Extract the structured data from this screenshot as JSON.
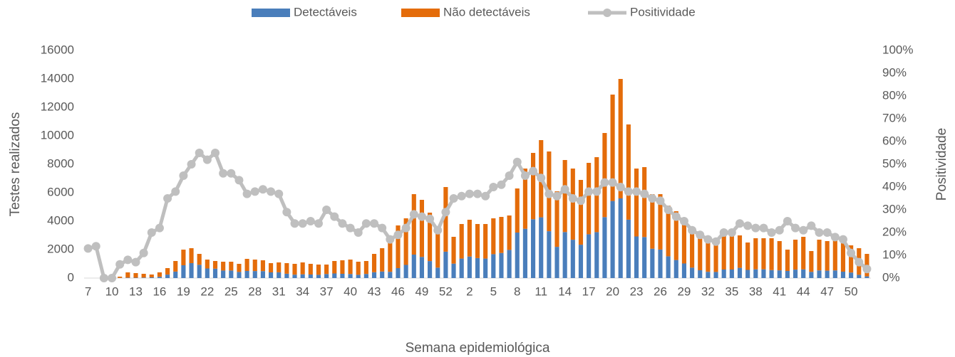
{
  "chart_data": {
    "type": "bar",
    "stacked": true,
    "x_label": "Semana epidemiológica",
    "y_label": "Testes realizados",
    "y2_label": "Positividade",
    "categories": [
      7,
      null,
      null,
      10,
      null,
      null,
      13,
      null,
      null,
      16,
      null,
      null,
      19,
      null,
      null,
      22,
      null,
      null,
      25,
      null,
      null,
      28,
      null,
      null,
      31,
      null,
      null,
      34,
      null,
      null,
      37,
      null,
      null,
      40,
      null,
      null,
      43,
      null,
      null,
      46,
      null,
      null,
      49,
      null,
      null,
      52,
      null,
      null,
      2,
      null,
      null,
      5,
      null,
      null,
      8,
      null,
      null,
      11,
      null,
      null,
      14,
      null,
      null,
      17,
      null,
      null,
      20,
      null,
      null,
      23,
      null,
      null,
      26,
      null,
      null,
      29,
      null,
      null,
      32,
      null,
      null,
      35,
      null,
      null,
      38,
      null,
      null,
      41,
      null,
      null,
      44,
      null,
      null,
      47,
      null,
      null,
      50,
      null,
      null
    ],
    "series": [
      {
        "name": "Detectáveis",
        "color": "#4a7ebb",
        "values": [
          0,
          0,
          0,
          0,
          10,
          30,
          25,
          35,
          50,
          90,
          245,
          455,
          900,
          1050,
          935,
          675,
          660,
          530,
          530,
          430,
          500,
          495,
          490,
          400,
          405,
          305,
          240,
          265,
          250,
          230,
          285,
          325,
          300,
          285,
          230,
          290,
          410,
          460,
          440,
          700,
          925,
          1650,
          1485,
          1195,
          735,
          1855,
          1015,
          1370,
          1515,
          1405,
          1370,
          1680,
          1765,
          1980,
          3200,
          3465,
          4135,
          4270,
          3295,
          2195,
          3235,
          2695,
          2345,
          3080,
          3230,
          4285,
          5420,
          5600,
          4105,
          2925,
          2885,
          2065,
          2005,
          1530,
          1270,
          1025,
          735,
          550,
          440,
          430,
          600,
          600,
          720,
          575,
          615,
          615,
          560,
          545,
          500,
          595,
          610,
          435,
          540,
          520,
          540,
          450,
          390,
          230,
          120
        ]
      },
      {
        "name": "Não detectáveis",
        "color": "#e46c0a",
        "values": [
          0,
          0,
          0,
          50,
          90,
          370,
          325,
          265,
          200,
          310,
          455,
          745,
          1100,
          1050,
          765,
          625,
          540,
          620,
          620,
          570,
          850,
          805,
          760,
          650,
          695,
          745,
          760,
          835,
          750,
          720,
          665,
          875,
          950,
          1015,
          920,
          910,
          1290,
          1640,
          2160,
          3000,
          3275,
          4250,
          4015,
          3405,
          2765,
          4545,
          1885,
          2430,
          2585,
          2395,
          2430,
          2520,
          2535,
          2420,
          3100,
          4235,
          4665,
          5430,
          5605,
          3905,
          5065,
          5005,
          4555,
          5020,
          5270,
          5915,
          7480,
          8400,
          6695,
          4775,
          4915,
          3835,
          3895,
          3570,
          3430,
          3075,
          2765,
          2350,
          2160,
          2270,
          2400,
          2400,
          2280,
          1925,
          2185,
          2185,
          2240,
          2055,
          1500,
          2105,
          2290,
          1465,
          2160,
          2080,
          2160,
          2050,
          1910,
          1870,
          1580
        ]
      },
      {
        "name": "Positividade",
        "color": "#bfbfbf",
        "type": "line",
        "axis": "y2",
        "values": [
          13,
          14,
          0,
          0,
          6,
          8,
          7,
          11,
          20,
          22,
          35,
          38,
          45,
          50,
          55,
          52,
          55,
          46,
          46,
          43,
          37,
          38,
          39,
          38,
          37,
          29,
          24,
          24,
          25,
          24,
          30,
          27,
          24,
          22,
          20,
          24,
          24,
          22,
          17,
          19,
          22,
          28,
          27,
          26,
          21,
          29,
          35,
          36,
          37,
          37,
          36,
          40,
          41,
          45,
          51,
          45,
          47,
          44,
          37,
          36,
          39,
          35,
          34,
          38,
          38,
          42,
          42,
          40,
          38,
          38,
          37,
          35,
          34,
          30,
          27,
          25,
          21,
          19,
          17,
          16,
          20,
          20,
          24,
          23,
          22,
          22,
          20,
          21,
          25,
          22,
          21,
          23,
          20,
          20,
          18,
          17,
          11,
          7,
          4
        ]
      }
    ],
    "ylim": [
      0,
      16000
    ],
    "yticks": [
      0,
      2000,
      4000,
      6000,
      8000,
      10000,
      12000,
      14000,
      16000
    ],
    "y2lim": [
      0,
      100
    ],
    "y2ticks": [
      {
        "value": 0,
        "label": "0%"
      },
      {
        "value": 10,
        "label": "10%"
      },
      {
        "value": 20,
        "label": "20%"
      },
      {
        "value": 30,
        "label": "30%"
      },
      {
        "value": 40,
        "label": "40%"
      },
      {
        "value": 50,
        "label": "50%"
      },
      {
        "value": 60,
        "label": "60%"
      },
      {
        "value": 70,
        "label": "70%"
      },
      {
        "value": 80,
        "label": "80%"
      },
      {
        "value": 90,
        "label": "90%"
      },
      {
        "value": 100,
        "label": "100%"
      }
    ],
    "grid": false,
    "legend": "top"
  }
}
